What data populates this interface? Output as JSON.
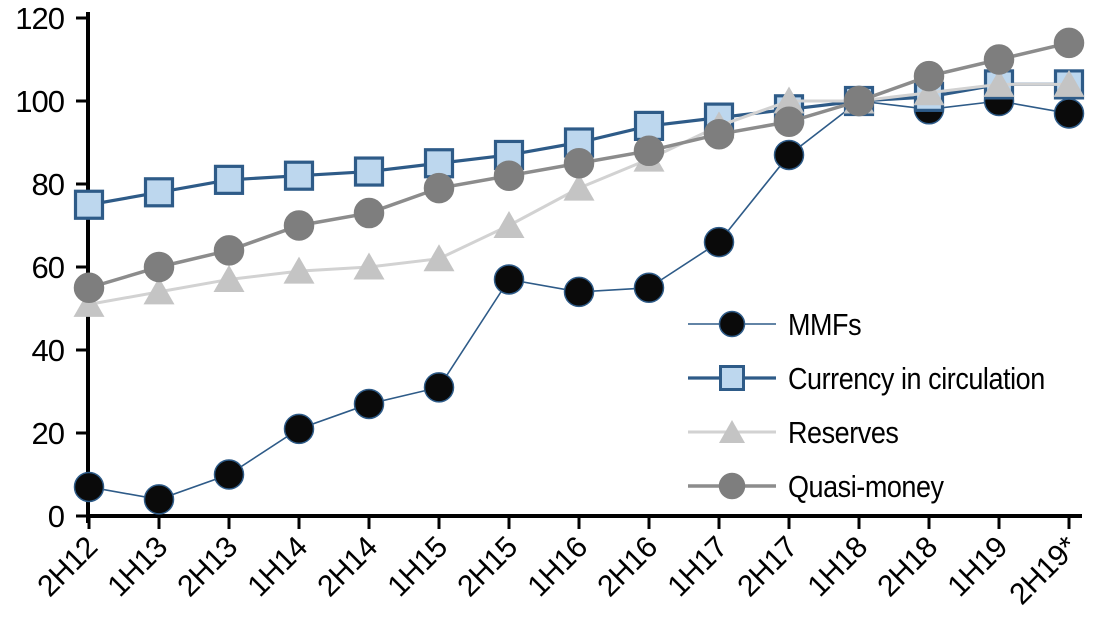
{
  "chart_data": {
    "type": "line",
    "title": "",
    "xlabel": "",
    "ylabel": "",
    "categories": [
      "2H12",
      "1H13",
      "2H13",
      "1H14",
      "2H14",
      "1H15",
      "2H15",
      "1H16",
      "2H16",
      "1H17",
      "2H17",
      "1H18",
      "2H18",
      "1H19",
      "2H19*"
    ],
    "y_ticks": [
      0,
      20,
      40,
      60,
      80,
      100,
      120
    ],
    "ylim": [
      0,
      120
    ],
    "grid": false,
    "legend_position": "inside-right",
    "axis_color": "#000000",
    "series": [
      {
        "name": "MMFs",
        "marker": "circle",
        "color": "#0a0a0a",
        "marker_stroke": "#2e5b88",
        "line_color": "#2e5b88",
        "line_width": 1.6,
        "values": [
          7,
          4,
          10,
          21,
          27,
          31,
          57,
          54,
          55,
          66,
          87,
          100,
          98,
          100,
          97
        ]
      },
      {
        "name": "Currency in circulation",
        "marker": "square",
        "color": "#bdd7ee",
        "marker_stroke": "#2e5b88",
        "line_color": "#2e5b88",
        "line_width": 3.2,
        "values": [
          75,
          78,
          81,
          82,
          83,
          85,
          87,
          90,
          94,
          96,
          98,
          100,
          101,
          104,
          104
        ]
      },
      {
        "name": "Reserves",
        "marker": "triangle",
        "color": "#c4c4c4",
        "marker_stroke": "#c4c4c4",
        "line_color": "#d2d2d2",
        "line_width": 3,
        "values": [
          51,
          54,
          57,
          59,
          60,
          62,
          70,
          79,
          86,
          94,
          100,
          100,
          102,
          104,
          104
        ]
      },
      {
        "name": "Quasi-money",
        "marker": "circle",
        "color": "#7e7e7e",
        "marker_stroke": "#7e7e7e",
        "line_color": "#8c8c8c",
        "line_width": 3.5,
        "values": [
          55,
          60,
          64,
          70,
          73,
          79,
          82,
          85,
          88,
          92,
          95,
          100,
          106,
          110,
          114
        ]
      }
    ]
  }
}
